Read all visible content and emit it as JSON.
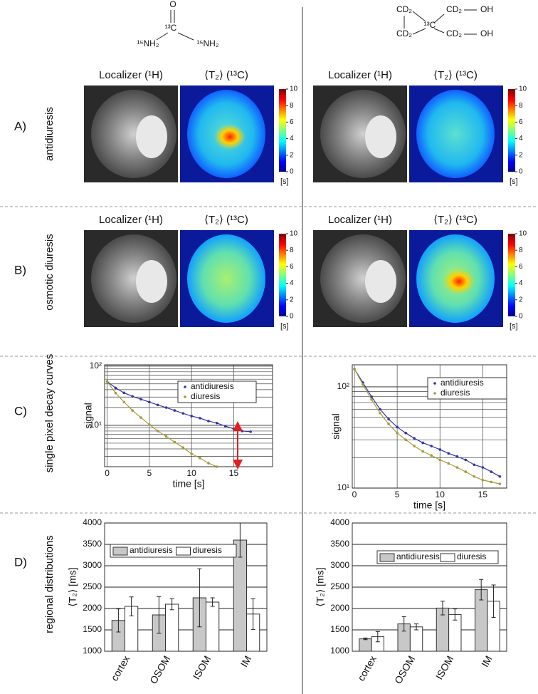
{
  "molecules": [
    {
      "atoms": [
        "O",
        "¹³C",
        "¹⁵NH₂",
        "¹⁵NH₂"
      ]
    },
    {
      "atoms": [
        "CD₂",
        "CD₂",
        "OH",
        "¹³C",
        "CD₂",
        "CD₂",
        "OH"
      ]
    }
  ],
  "rows": [
    {
      "letter": "A)",
      "label": "antidiuresis"
    },
    {
      "letter": "B)",
      "label": "osmotic diuresis"
    },
    {
      "letter": "C)",
      "label": "single pixel decay curves"
    },
    {
      "letter": "D)",
      "label": "regional distributions"
    }
  ],
  "image_panels": [
    {
      "localizer_title": "Localizer (¹H)",
      "map_title": "⟨T₂⟩ (¹³C)",
      "colorbar_lim": [
        0,
        10
      ],
      "colorbar_ticks": [
        0,
        2,
        4,
        6,
        8,
        10
      ],
      "colorbar_unit": "[s]"
    },
    {
      "localizer_title": "Localizer (¹H)",
      "map_title": "⟨T₂⟩ (¹³C)",
      "colorbar_lim": [
        0,
        10
      ],
      "colorbar_ticks": [
        0,
        2,
        4,
        6,
        8,
        10
      ],
      "colorbar_unit": "[s]"
    },
    {
      "localizer_title": "Localizer (¹H)",
      "map_title": "⟨T₂⟩ (¹³C)",
      "colorbar_lim": [
        0,
        10
      ],
      "colorbar_ticks": [
        0,
        2,
        4,
        6,
        8,
        10
      ],
      "colorbar_unit": "[s]"
    },
    {
      "localizer_title": "Localizer (¹H)",
      "map_title": "⟨T₂⟩ (¹³C)",
      "colorbar_lim": [
        0,
        10
      ],
      "colorbar_ticks": [
        0,
        2,
        4,
        6,
        8,
        10
      ],
      "colorbar_unit": "[s]"
    }
  ],
  "chart_data": [
    {
      "type": "line",
      "xlabel": "time [s]",
      "ylabel": "signal",
      "log_y": true,
      "grid": true,
      "xlim": [
        -0.3,
        19.6
      ],
      "xticks": [
        0,
        5,
        10,
        15
      ],
      "ylim": [
        2,
        105
      ],
      "yticks": [
        {
          "value": 10,
          "label": "10¹"
        },
        {
          "value": 100,
          "label": "10²"
        }
      ],
      "yminor": [
        3,
        4,
        5,
        6,
        7,
        8,
        9,
        20,
        30,
        40,
        50,
        60,
        70,
        80,
        90
      ],
      "legend": "upper right",
      "x": [
        0,
        1,
        2,
        3,
        4,
        5,
        6,
        7,
        8,
        9,
        10,
        11,
        12,
        13,
        14,
        15,
        16,
        17
      ],
      "series": [
        {
          "name": "antidiuresis",
          "color": "#3333a0",
          "values": [
            55,
            42.8,
            35.3,
            30.8,
            27.6,
            24.7,
            22.1,
            19.9,
            17.8,
            15.9,
            14.3,
            13.2,
            11.8,
            10.9,
            9.7,
            8.7,
            8.0,
            7.8
          ]
        },
        {
          "name": "diuresis",
          "color": "#a39a3c",
          "values": [
            55,
            35,
            24.7,
            17.8,
            13.5,
            10.3,
            8.0,
            6.5,
            5.2,
            4.2,
            3.3,
            2.8,
            2.3,
            2.0,
            null,
            null,
            null,
            null
          ]
        }
      ]
    },
    {
      "type": "line",
      "xlabel": "time [s]",
      "ylabel": "signal",
      "log_y": true,
      "grid": true,
      "xlim": [
        -0.25,
        17.8
      ],
      "xticks": [
        0,
        5,
        10,
        15
      ],
      "ylim": [
        10,
        165
      ],
      "yticks": [
        {
          "value": 10,
          "label": "10¹"
        },
        {
          "value": 100,
          "label": "10²"
        }
      ],
      "yminor": [
        20,
        30,
        40,
        50,
        60,
        70,
        80,
        90
      ],
      "legend": "upper right",
      "x": [
        0,
        1,
        2,
        3,
        4,
        5,
        6,
        7,
        8,
        9,
        10,
        11,
        12,
        13,
        14,
        15,
        16,
        17
      ],
      "series": [
        {
          "name": "antidiuresis",
          "color": "#3333a0",
          "values": [
            150,
            110,
            80,
            60,
            48,
            40,
            35,
            31,
            28,
            26,
            24,
            22,
            20.5,
            19,
            17,
            16,
            14.5,
            13
          ]
        },
        {
          "name": "diuresis",
          "color": "#a39a3c",
          "values": [
            150,
            105,
            75,
            55,
            43,
            35,
            30,
            26,
            23,
            21,
            19,
            17.5,
            16,
            14.5,
            13,
            12,
            11.5,
            11
          ]
        }
      ]
    },
    {
      "type": "bar",
      "ylabel": "⟨T₂⟩ [ms]",
      "grid": true,
      "legend": "upper center",
      "categories": [
        "cortex",
        "OSOM",
        "ISOM",
        "IM"
      ],
      "ylim": [
        1000,
        4000
      ],
      "yticks": [
        1000,
        1500,
        2000,
        2500,
        3000,
        3500,
        4000
      ],
      "series": [
        {
          "name": "antidiuresis",
          "color": "#c8c8c8",
          "values": [
            1720,
            1850,
            2250,
            3600
          ],
          "errors": [
            270,
            430,
            680,
            400
          ]
        },
        {
          "name": "diuresis",
          "color": "#ffffff",
          "values": [
            2050,
            2100,
            2150,
            1870
          ],
          "errors": [
            220,
            130,
            100,
            360
          ]
        }
      ]
    },
    {
      "type": "bar",
      "ylabel": "⟨T₂⟩ [ms]",
      "grid": true,
      "legend": "upper center",
      "categories": [
        "cortex",
        "OSOM",
        "ISOM",
        "IM"
      ],
      "ylim": [
        1000,
        4000
      ],
      "yticks": [
        1000,
        1500,
        2000,
        2500,
        3000,
        3500,
        4000
      ],
      "series": [
        {
          "name": "antidiuresis",
          "color": "#c8c8c8",
          "values": [
            1290,
            1640,
            2010,
            2440
          ],
          "errors": [
            20,
            170,
            160,
            240
          ]
        },
        {
          "name": "diuresis",
          "color": "#ffffff",
          "values": [
            1340,
            1570,
            1860,
            2170
          ],
          "errors": [
            120,
            70,
            130,
            380
          ]
        }
      ]
    }
  ]
}
